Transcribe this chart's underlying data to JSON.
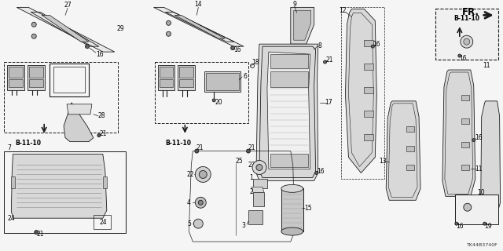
{
  "background_color": "#f5f5f5",
  "line_color": "#1a1a1a",
  "diagram_id": "TK44B3740F",
  "fr_label": "FR.",
  "b_11_10": "B-11-10",
  "label_fontsize": 6.5,
  "small_fontsize": 5.5,
  "fig_w": 6.4,
  "fig_h": 3.2,
  "dpi": 100
}
